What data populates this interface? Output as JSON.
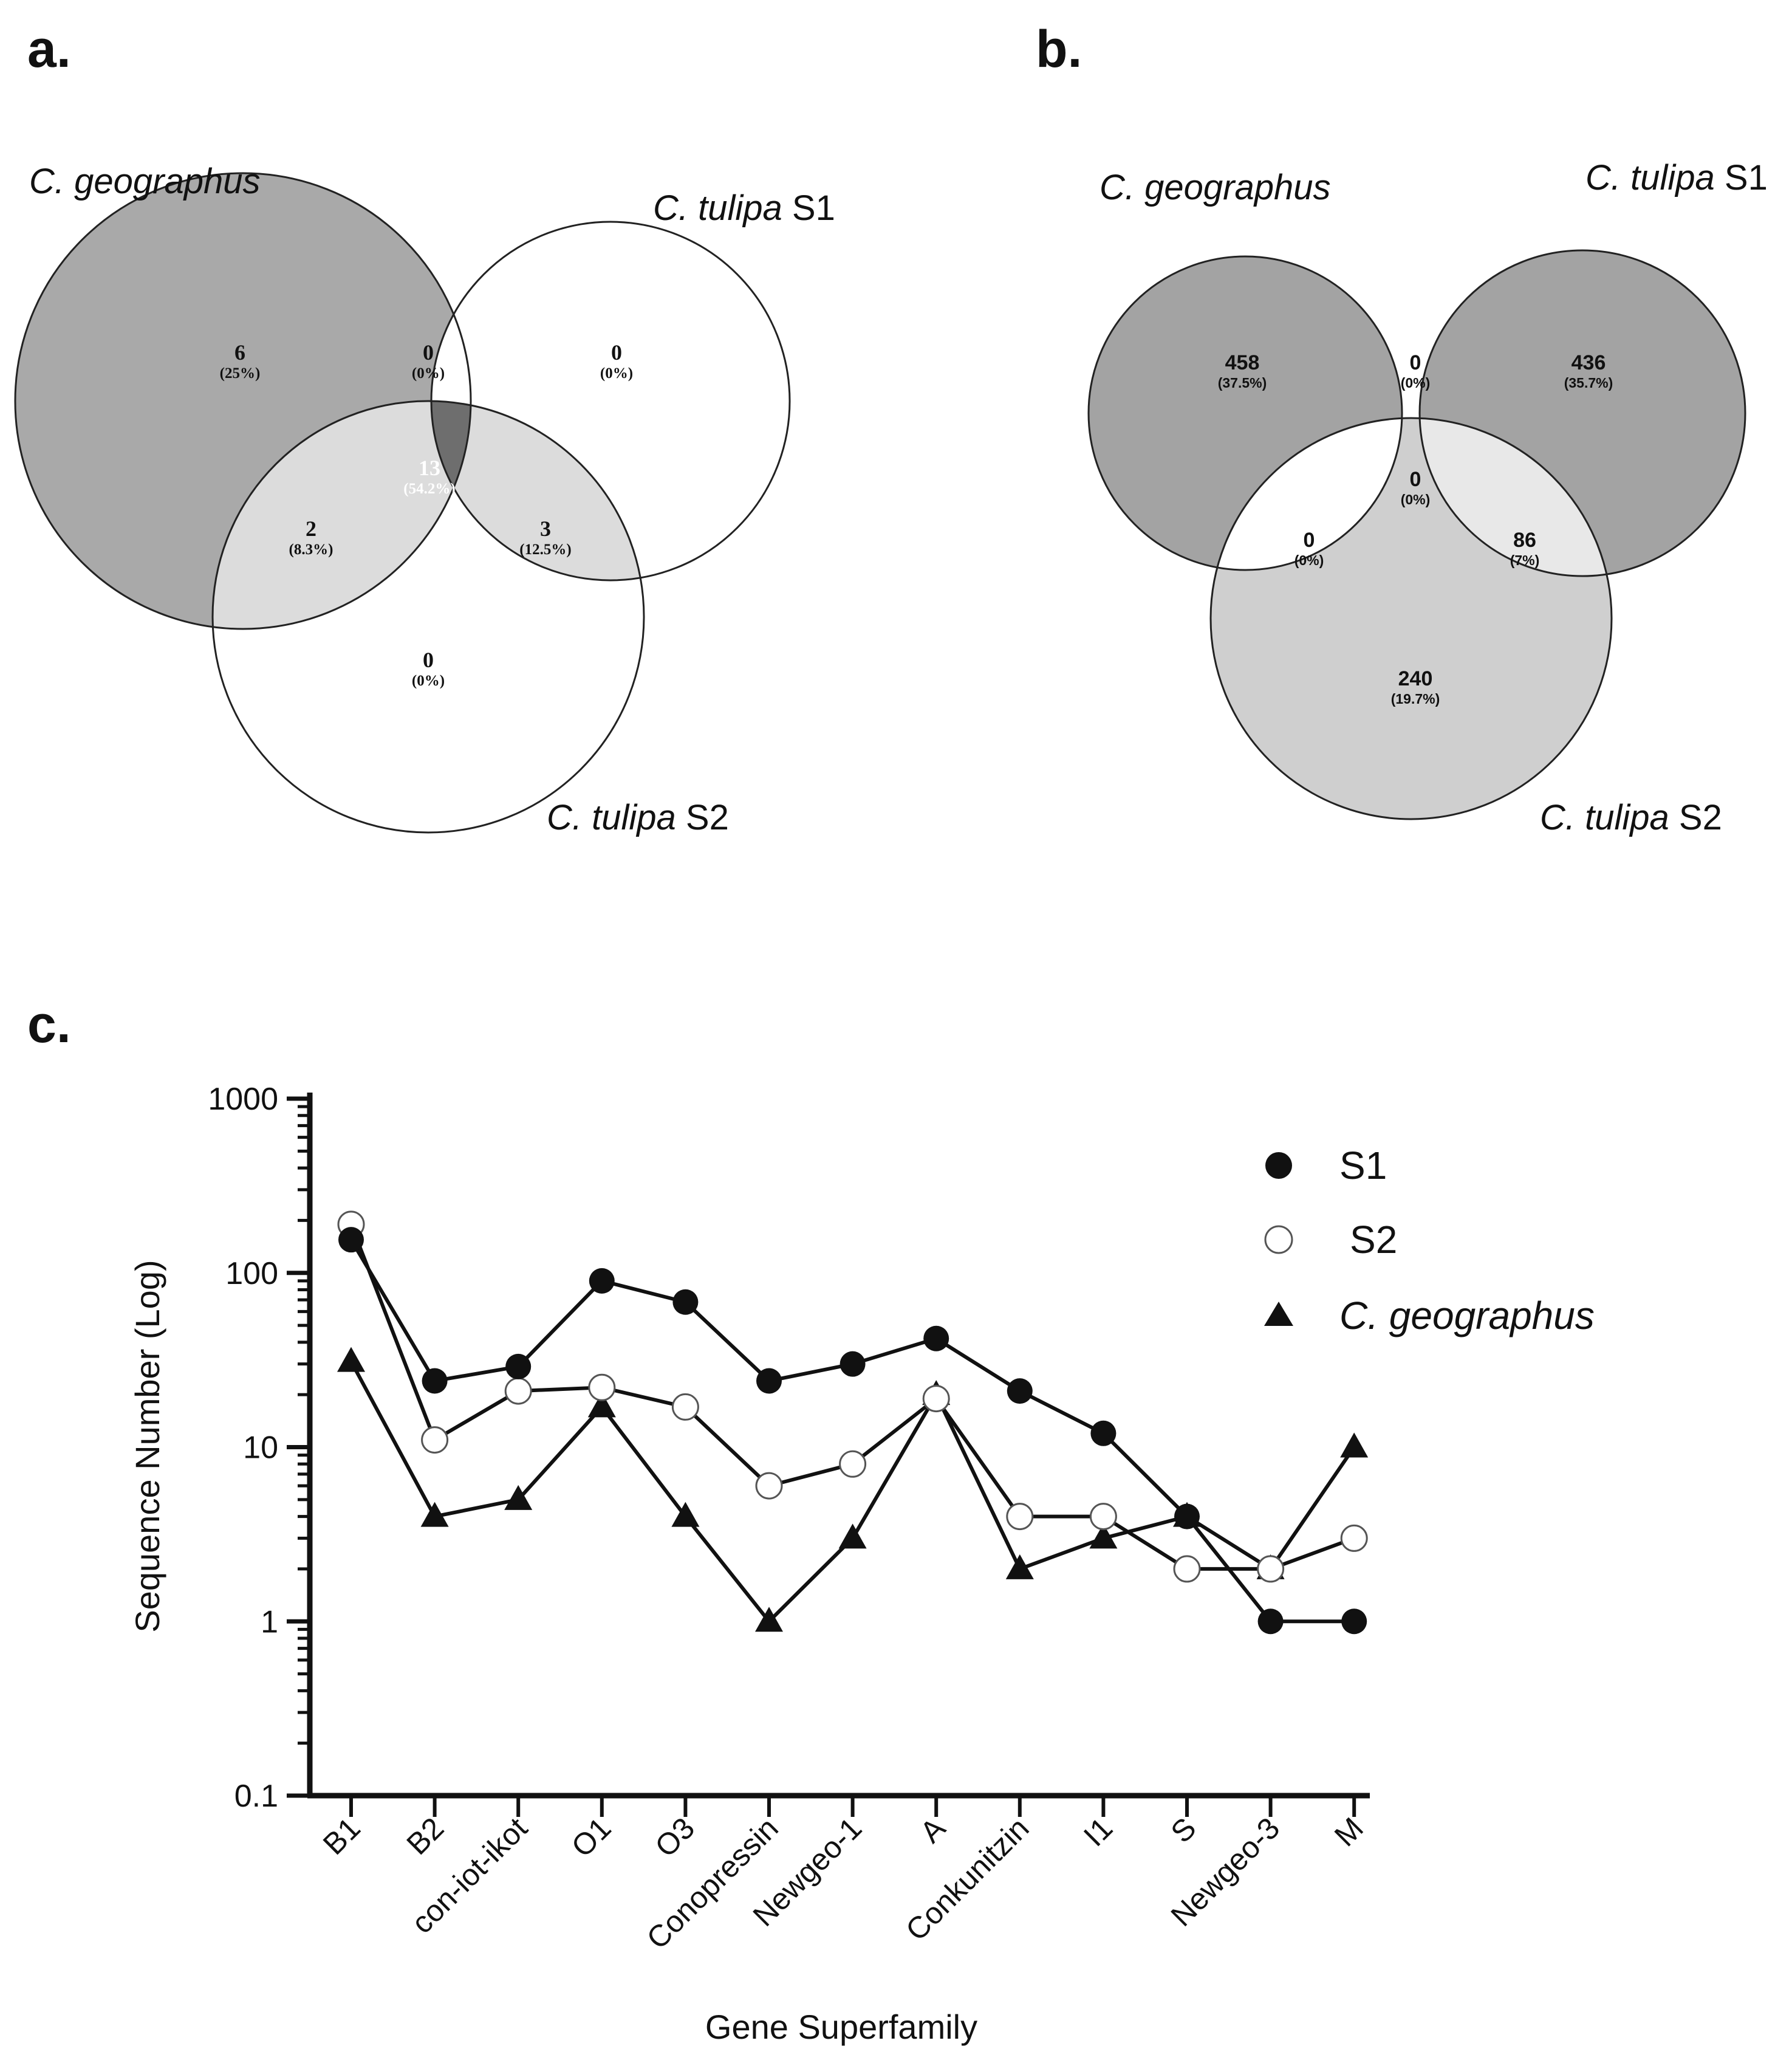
{
  "panels": {
    "a": {
      "letter": "a.",
      "labels": [
        {
          "italic": "C. geographus",
          "rest": ""
        },
        {
          "italic": "C. tulipa",
          "rest": " S1"
        },
        {
          "italic": "C. tulipa",
          "rest": " S2"
        }
      ],
      "regions": [
        {
          "name": "geo-only",
          "count": "6",
          "pct": "(25%)"
        },
        {
          "name": "geo-s1",
          "count": "0",
          "pct": "(0%)"
        },
        {
          "name": "s1-only",
          "count": "0",
          "pct": "(0%)"
        },
        {
          "name": "all-three",
          "count": "13",
          "pct": "(54.2%)"
        },
        {
          "name": "geo-s2",
          "count": "2",
          "pct": "(8.3%)"
        },
        {
          "name": "s1-s2",
          "count": "3",
          "pct": "(12.5%)"
        },
        {
          "name": "s2-only",
          "count": "0",
          "pct": "(0%)"
        }
      ],
      "colors": {
        "outer": "#a9a9a9",
        "pair": "#dcdcdc",
        "center": "#6e6e6e",
        "none": "#ffffff"
      }
    },
    "b": {
      "letter": "b.",
      "labels": [
        {
          "italic": "C. geographus",
          "rest": ""
        },
        {
          "italic": "C. tulipa",
          "rest": " S1"
        },
        {
          "italic": "C. tulipa",
          "rest": " S2"
        }
      ],
      "regions": [
        {
          "name": "geo-only",
          "count": "458",
          "pct": "(37.5%)"
        },
        {
          "name": "geo-s1",
          "count": "0",
          "pct": "(0%)"
        },
        {
          "name": "s1-only",
          "count": "436",
          "pct": "(35.7%)"
        },
        {
          "name": "all-three",
          "count": "0",
          "pct": "(0%)"
        },
        {
          "name": "geo-s2",
          "count": "0",
          "pct": "(0%)"
        },
        {
          "name": "s1-s2",
          "count": "86",
          "pct": "(7%)"
        },
        {
          "name": "s2-only",
          "count": "240",
          "pct": "(19.7%)"
        }
      ],
      "colors": {
        "outer": "#a3a3a3",
        "s2": "#cfcfcf",
        "pair": "#e8e8e8",
        "none": "#ffffff"
      }
    },
    "c": {
      "letter": "c."
    }
  },
  "chart_data": {
    "type": "line",
    "scale": "log",
    "xlabel": "Gene Superfamily",
    "ylabel": "Sequence Number (Log)",
    "ylim": [
      0.1,
      1000
    ],
    "yticks": [
      "0.1",
      "1",
      "10",
      "100",
      "1000"
    ],
    "categories": [
      "B1",
      "B2",
      "con-iot-ikot",
      "O1",
      "O3",
      "Conopressin",
      "Newgeo-1",
      "A",
      "Conkunitzin",
      "I1",
      "S",
      "Newgeo-3",
      "M"
    ],
    "series": [
      {
        "name": "S1",
        "marker": "filled-circle",
        "values": [
          155,
          24,
          29,
          90,
          68,
          24,
          30,
          42,
          21,
          12,
          4,
          1,
          1
        ]
      },
      {
        "name": "S2",
        "marker": "open-circle",
        "values": [
          190,
          11,
          21,
          22,
          17,
          6,
          8,
          19,
          4,
          4,
          2,
          2,
          3
        ]
      },
      {
        "name": "C. geographus",
        "marker": "triangle",
        "values": [
          31,
          4,
          5,
          17,
          4,
          1,
          3,
          20,
          2,
          3,
          4,
          2,
          10
        ]
      }
    ]
  }
}
